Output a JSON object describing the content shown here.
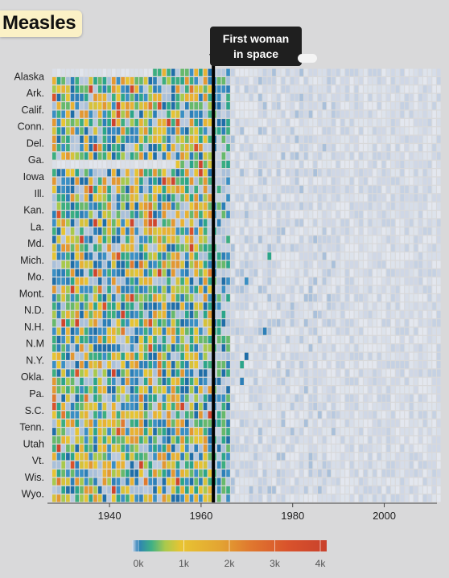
{
  "title": "Measles",
  "annotation": {
    "text_line1": "First woman",
    "text_line2": "in space",
    "year": 1963,
    "partial_label": "Vt"
  },
  "chart_data": {
    "type": "heatmap",
    "title": "Measles",
    "x_axis": {
      "range": [
        1928,
        2012
      ],
      "ticks": [
        1940,
        1960,
        1980,
        2000
      ]
    },
    "row_labels": [
      "Alaska",
      "Ark.",
      "Calif.",
      "Conn.",
      "Del.",
      "Ga.",
      "Iowa",
      "Ill.",
      "Kan.",
      "La.",
      "Md.",
      "Mich.",
      "Mo.",
      "Mont.",
      "N.D.",
      "N.H.",
      "N.M",
      "N.Y.",
      "Okla.",
      "Pa.",
      "S.C.",
      "Tenn.",
      "Utah",
      "Vt.",
      "Wis.",
      "Wyo."
    ],
    "rows_per_label": 2,
    "vaccine_intro_year": 1963,
    "color_scale": {
      "ticks": [
        "0k",
        "1k",
        "2k",
        "3k",
        "4k"
      ],
      "domain": [
        0,
        4000
      ],
      "colors": [
        "#e2e6ee",
        "#2c7fb8",
        "#3fb085",
        "#e8c432",
        "#e39832",
        "#d9532c",
        "#c9412c"
      ]
    },
    "cases_pattern": "high values (mostly yellow/green/blue with occasional orange-red) before 1963, sharp drop to near-zero after 1966"
  }
}
